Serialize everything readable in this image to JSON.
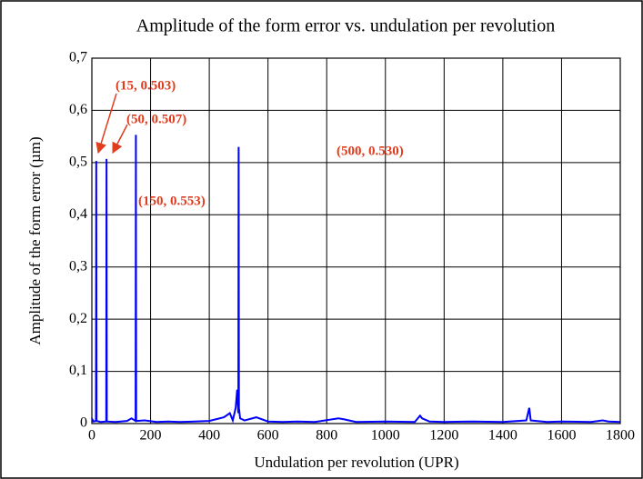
{
  "chart_data": {
    "type": "line",
    "title": "Amplitude of the form error vs. undulation per revolution",
    "x_label": "Undulation per revolution (UPR)",
    "y_label": "Amplitude of the form error (µm)",
    "x": [
      0,
      5,
      14,
      15,
      16,
      30,
      49,
      50,
      51,
      80,
      120,
      135,
      149,
      150,
      151,
      180,
      220,
      260,
      300,
      350,
      400,
      450,
      470,
      480,
      490,
      495,
      499,
      500,
      501,
      505,
      520,
      560,
      600,
      650,
      700,
      760,
      840,
      860,
      900,
      1000,
      1100,
      1118,
      1125,
      1150,
      1200,
      1300,
      1400,
      1480,
      1485,
      1490,
      1495,
      1550,
      1600,
      1700,
      1740,
      1760,
      1800
    ],
    "series": [
      {
        "name": "Amplitude",
        "color": "#0000ff",
        "values": [
          0.01,
          0.004,
          0.005,
          0.503,
          0.005,
          0.003,
          0.004,
          0.507,
          0.004,
          0.003,
          0.005,
          0.01,
          0.005,
          0.553,
          0.005,
          0.006,
          0.003,
          0.004,
          0.003,
          0.004,
          0.005,
          0.012,
          0.02,
          0.006,
          0.03,
          0.065,
          0.02,
          0.53,
          0.03,
          0.01,
          0.006,
          0.012,
          0.004,
          0.003,
          0.004,
          0.003,
          0.01,
          0.008,
          0.003,
          0.004,
          0.003,
          0.015,
          0.01,
          0.004,
          0.003,
          0.004,
          0.003,
          0.006,
          0.018,
          0.03,
          0.006,
          0.003,
          0.004,
          0.003,
          0.006,
          0.004,
          0.003
        ]
      }
    ],
    "xlim": [
      0,
      1800
    ],
    "xticks": [
      0,
      200,
      400,
      600,
      800,
      1000,
      1200,
      1400,
      1600,
      1800
    ],
    "ylim": [
      0,
      0.7
    ],
    "yticks": [
      0,
      {
        "value": 0.1,
        "label": "0,1"
      },
      {
        "value": 0.2,
        "label": "0,2"
      },
      {
        "value": 0.3,
        "label": "0,3"
      },
      {
        "value": 0.4,
        "label": "0,4"
      },
      {
        "value": 0.5,
        "label": "0,5"
      },
      {
        "value": 0.6,
        "label": "0,6"
      },
      {
        "value": 0.7,
        "label": "0,7"
      }
    ],
    "grid": true,
    "annotations": [
      "(15,  0.503)",
      "(50,  0.507)",
      "(150,  0.553)",
      "(500,  0.530)"
    ]
  }
}
